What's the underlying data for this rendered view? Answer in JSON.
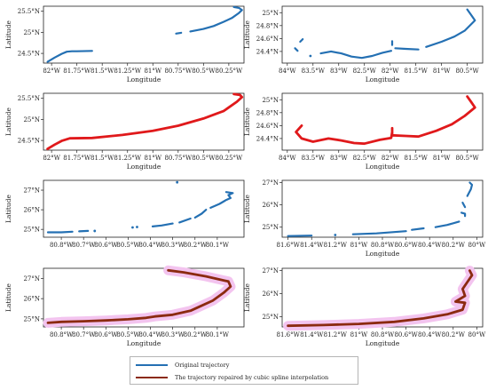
{
  "colors": {
    "original": "#2470b3",
    "repaired_left": "#e0191b",
    "repaired_right": "#8b2a10",
    "band": "#f3c4ef",
    "axis": "#222222"
  },
  "legend": {
    "original": "Original trajectory",
    "repaired": "The trajectory repaired by cubic spline interpolation"
  },
  "chart_data": [
    {
      "id": "p1",
      "type": "line",
      "style": "original",
      "xlabel": "Longitude",
      "ylabel": "Latitude",
      "xlim": [
        -82.08,
        -80.1
      ],
      "ylim": [
        24.27,
        25.62
      ],
      "xticks": [
        -82,
        -81.75,
        -81.5,
        -81.25,
        -81,
        -80.75,
        -80.5,
        -80.25
      ],
      "xticklabels": [
        "82°W",
        "81.75°W",
        "81.5°W",
        "81.25°W",
        "81°W",
        "80.75°W",
        "80.5°W",
        "80.25°W"
      ],
      "yticks": [
        24.5,
        25,
        25.5
      ],
      "yticklabels": [
        "24.5°N",
        "25°N",
        "25.5°N"
      ],
      "series": [
        {
          "segments": [
            [
              [
                -82.04,
                24.3
              ],
              [
                -81.97,
                24.4
              ],
              [
                -81.9,
                24.49
              ],
              [
                -81.85,
                24.54
              ],
              [
                -81.8,
                24.55
              ],
              [
                -81.75,
                24.55
              ],
              [
                -81.6,
                24.56
              ]
            ],
            [
              [
                -80.77,
                24.97
              ],
              [
                -80.72,
                24.99
              ]
            ],
            [
              [
                -80.63,
                25.02
              ],
              [
                -80.5,
                25.08
              ],
              [
                -80.4,
                25.15
              ],
              [
                -80.3,
                25.25
              ],
              [
                -80.22,
                25.34
              ],
              [
                -80.15,
                25.46
              ],
              [
                -80.12,
                25.53
              ],
              [
                -80.15,
                25.58
              ],
              [
                -80.2,
                25.6
              ]
            ]
          ]
        }
      ]
    },
    {
      "id": "p2",
      "type": "line",
      "style": "original",
      "xlabel": "Longitude",
      "ylabel": "Latitude",
      "xlim": [
        -84.1,
        -80.2
      ],
      "ylim": [
        24.22,
        25.1
      ],
      "xticks": [
        -84,
        -83.5,
        -83,
        -82.5,
        -82,
        -81.5,
        -81,
        -80.5
      ],
      "xticklabels": [
        "84°W",
        "83.5°W",
        "83°W",
        "82.5°W",
        "82°W",
        "81.5°W",
        "81°W",
        "80.5°W"
      ],
      "yticks": [
        24.4,
        24.6,
        24.8,
        25.0
      ],
      "yticklabels": [
        "24.4°N",
        "24.6°N",
        "24.8°N",
        "25°N"
      ],
      "series": [
        {
          "segments": [
            [
              [
                -83.85,
                24.45
              ],
              [
                -83.8,
                24.41
              ]
            ],
            [
              [
                -83.75,
                24.55
              ],
              [
                -83.7,
                24.59
              ]
            ],
            [
              [
                -83.55,
                24.33
              ]
            ],
            [
              [
                -83.35,
                24.37
              ],
              [
                -83.15,
                24.4
              ],
              [
                -82.95,
                24.37
              ],
              [
                -82.75,
                24.32
              ],
              [
                -82.55,
                24.3
              ],
              [
                -82.35,
                24.33
              ],
              [
                -82.15,
                24.38
              ],
              [
                -81.98,
                24.41
              ]
            ],
            [
              [
                -81.96,
                24.5
              ],
              [
                -81.96,
                24.56
              ]
            ],
            [
              [
                -81.9,
                24.45
              ],
              [
                -81.7,
                24.44
              ],
              [
                -81.45,
                24.43
              ]
            ],
            [
              [
                -81.3,
                24.47
              ],
              [
                -81.0,
                24.55
              ],
              [
                -80.75,
                24.63
              ],
              [
                -80.55,
                24.72
              ],
              [
                -80.35,
                24.88
              ],
              [
                -80.42,
                24.96
              ],
              [
                -80.5,
                25.05
              ]
            ]
          ]
        }
      ]
    },
    {
      "id": "p3",
      "type": "line",
      "style": "repaired_left",
      "xlabel": "Longitude",
      "ylabel": "Latitude",
      "xlim": [
        -82.08,
        -80.1
      ],
      "ylim": [
        24.27,
        25.62
      ],
      "xticks": [
        -82,
        -81.75,
        -81.5,
        -81.25,
        -81,
        -80.75,
        -80.5,
        -80.25
      ],
      "xticklabels": [
        "82°W",
        "81.75°W",
        "81.5°W",
        "81.25°W",
        "81°W",
        "80.75°W",
        "80.5°W",
        "80.25°W"
      ],
      "yticks": [
        24.5,
        25,
        25.5
      ],
      "yticklabels": [
        "24.5°N",
        "25°N",
        "25.5°N"
      ],
      "series": [
        {
          "segments": [
            [
              [
                -82.04,
                24.3
              ],
              [
                -81.97,
                24.4
              ],
              [
                -81.9,
                24.49
              ],
              [
                -81.82,
                24.55
              ],
              [
                -81.6,
                24.56
              ],
              [
                -81.3,
                24.63
              ],
              [
                -81.0,
                24.73
              ],
              [
                -80.75,
                24.85
              ],
              [
                -80.5,
                25.02
              ],
              [
                -80.3,
                25.2
              ],
              [
                -80.17,
                25.42
              ],
              [
                -80.12,
                25.53
              ],
              [
                -80.14,
                25.58
              ],
              [
                -80.2,
                25.6
              ]
            ]
          ]
        }
      ]
    },
    {
      "id": "p4",
      "type": "line",
      "style": "repaired_left",
      "xlabel": "Longitude",
      "ylabel": "Latitude",
      "xlim": [
        -84.1,
        -80.2
      ],
      "ylim": [
        24.22,
        25.1
      ],
      "xticks": [
        -84,
        -83.5,
        -83,
        -82.5,
        -82,
        -81.5,
        -81,
        -80.5
      ],
      "xticklabels": [
        "84°W",
        "83.5°W",
        "83°W",
        "82.5°W",
        "82°W",
        "81.5°W",
        "81°W",
        "80.5°W"
      ],
      "yticks": [
        24.4,
        24.6,
        24.8,
        25.0
      ],
      "yticklabels": [
        "24.4°N",
        "24.6°N",
        "24.8°N",
        "25°N"
      ],
      "series": [
        {
          "segments": [
            [
              [
                -83.72,
                24.6
              ],
              [
                -83.83,
                24.5
              ],
              [
                -83.72,
                24.4
              ],
              [
                -83.5,
                24.35
              ],
              [
                -83.2,
                24.4
              ],
              [
                -82.95,
                24.37
              ],
              [
                -82.7,
                24.33
              ],
              [
                -82.5,
                24.32
              ],
              [
                -82.2,
                24.38
              ],
              [
                -81.98,
                24.41
              ],
              [
                -81.96,
                24.5
              ],
              [
                -81.96,
                24.56
              ],
              [
                -81.96,
                24.45
              ],
              [
                -81.7,
                24.44
              ],
              [
                -81.45,
                24.43
              ],
              [
                -81.1,
                24.52
              ],
              [
                -80.8,
                24.62
              ],
              [
                -80.55,
                24.75
              ],
              [
                -80.35,
                24.88
              ],
              [
                -80.42,
                24.96
              ],
              [
                -80.5,
                25.05
              ]
            ]
          ]
        }
      ]
    },
    {
      "id": "p5",
      "type": "line",
      "style": "original",
      "xlabel": "",
      "ylabel": "Latitude",
      "xlim": [
        -80.88,
        -79.98
      ],
      "ylim": [
        24.6,
        27.5
      ],
      "xticks": [
        -80.8,
        -80.7,
        -80.6,
        -80.5,
        -80.4,
        -80.3,
        -80.2,
        -80.1
      ],
      "xticklabels": [
        "80.8°W",
        "80.7°W",
        "80.6°W",
        "80.5°W",
        "80.4°W",
        "80.3°W",
        "80.2°W",
        "80.1°W"
      ],
      "yticks": [
        25,
        26,
        27
      ],
      "yticklabels": [
        "25°N",
        "26°N",
        "27°N"
      ],
      "series": [
        {
          "segments": [
            [
              [
                -80.86,
                24.85
              ],
              [
                -80.8,
                24.85
              ],
              [
                -80.75,
                24.88
              ]
            ],
            [
              [
                -80.72,
                24.9
              ],
              [
                -80.68,
                24.92
              ]
            ],
            [
              [
                -80.65,
                24.92
              ]
            ],
            [
              [
                -80.48,
                25.1
              ]
            ],
            [
              [
                -80.46,
                25.12
              ]
            ],
            [
              [
                -80.39,
                25.15
              ],
              [
                -80.35,
                25.2
              ],
              [
                -80.3,
                25.3
              ]
            ],
            [
              [
                -80.28,
                27.4
              ]
            ],
            [
              [
                -80.27,
                25.35
              ],
              [
                -80.22,
                25.55
              ]
            ],
            [
              [
                -80.2,
                25.6
              ],
              [
                -80.17,
                25.8
              ],
              [
                -80.15,
                26.0
              ]
            ],
            [
              [
                -80.13,
                26.1
              ],
              [
                -80.09,
                26.3
              ],
              [
                -80.06,
                26.5
              ],
              [
                -80.04,
                26.6
              ],
              [
                -80.05,
                26.75
              ],
              [
                -80.03,
                26.85
              ],
              [
                -80.06,
                26.9
              ]
            ]
          ]
        }
      ]
    },
    {
      "id": "p6",
      "type": "line",
      "style": "original",
      "xlabel": "Longitude",
      "ylabel": "Latitude",
      "xlim": [
        -81.65,
        -79.95
      ],
      "ylim": [
        24.55,
        27.1
      ],
      "xticks": [
        -81.6,
        -81.4,
        -81.2,
        -81.0,
        -80.8,
        -80.6,
        -80.4,
        -80.2,
        -80.0
      ],
      "xticklabels": [
        "81.6°W",
        "81.4°W",
        "81.2°W",
        "81°W",
        "80.8°W",
        "80.6°W",
        "80.4°W",
        "80.2°W",
        "80°W"
      ],
      "yticks": [
        25,
        26,
        27
      ],
      "yticklabels": [
        "25°N",
        "26°N",
        "27°N"
      ],
      "series": [
        {
          "segments": [
            [
              [
                -81.6,
                24.6
              ],
              [
                -81.4,
                24.62
              ]
            ],
            [
              [
                -81.2,
                24.65
              ]
            ],
            [
              [
                -81.05,
                24.68
              ],
              [
                -80.85,
                24.72
              ],
              [
                -80.7,
                24.78
              ],
              [
                -80.6,
                24.82
              ]
            ],
            [
              [
                -80.55,
                24.88
              ],
              [
                -80.45,
                24.95
              ]
            ],
            [
              [
                -80.35,
                25.0
              ],
              [
                -80.25,
                25.1
              ],
              [
                -80.15,
                25.25
              ]
            ],
            [
              [
                -80.1,
                25.5
              ],
              [
                -80.1,
                25.6
              ],
              [
                -80.13,
                25.65
              ]
            ],
            [
              [
                -80.1,
                25.9
              ],
              [
                -80.12,
                26.1
              ]
            ],
            [
              [
                -80.08,
                26.4
              ],
              [
                -80.05,
                26.7
              ],
              [
                -80.04,
                26.9
              ],
              [
                -80.06,
                27.0
              ]
            ]
          ]
        }
      ]
    },
    {
      "id": "p7",
      "type": "area",
      "style": "repaired_right",
      "xlabel": "Longitude",
      "ylabel": "Latitude",
      "xlim": [
        -80.88,
        -79.98
      ],
      "ylim": [
        24.6,
        27.5
      ],
      "xticks": [
        -80.8,
        -80.7,
        -80.6,
        -80.5,
        -80.4,
        -80.3,
        -80.2,
        -80.1
      ],
      "xticklabels": [
        "80.8°W",
        "80.7°W",
        "80.6°W",
        "80.5°W",
        "80.4°W",
        "80.3°W",
        "80.2°W",
        "80.1°W"
      ],
      "yticks": [
        25,
        26,
        27
      ],
      "yticklabels": [
        "25°N",
        "26°N",
        "27°N"
      ],
      "series": [
        {
          "segments": [
            [
              [
                -80.86,
                24.8
              ],
              [
                -80.8,
                24.85
              ],
              [
                -80.7,
                24.88
              ],
              [
                -80.6,
                24.92
              ],
              [
                -80.5,
                24.98
              ],
              [
                -80.42,
                25.05
              ],
              [
                -80.38,
                25.12
              ],
              [
                -80.3,
                25.2
              ],
              [
                -80.22,
                25.4
              ],
              [
                -80.18,
                25.6
              ],
              [
                -80.12,
                25.9
              ],
              [
                -80.07,
                26.3
              ],
              [
                -80.04,
                26.6
              ],
              [
                -80.05,
                26.85
              ],
              [
                -80.15,
                27.1
              ],
              [
                -80.25,
                27.3
              ],
              [
                -80.32,
                27.4
              ]
            ]
          ]
        }
      ]
    },
    {
      "id": "p8",
      "type": "area",
      "style": "repaired_right",
      "xlabel": "Longitude",
      "ylabel": "Latitude",
      "xlim": [
        -81.65,
        -79.95
      ],
      "ylim": [
        24.55,
        27.1
      ],
      "xticks": [
        -81.6,
        -81.4,
        -81.2,
        -81.0,
        -80.8,
        -80.6,
        -80.4,
        -80.2,
        -80.0
      ],
      "xticklabels": [
        "81.6°W",
        "81.4°W",
        "81.2°W",
        "81°W",
        "80.8°W",
        "80.6°W",
        "80.4°W",
        "80.2°W",
        "80°W"
      ],
      "yticks": [
        25,
        26,
        27
      ],
      "yticklabels": [
        "25°N",
        "26°N",
        "27°N"
      ],
      "series": [
        {
          "segments": [
            [
              [
                -81.6,
                24.6
              ],
              [
                -81.3,
                24.63
              ],
              [
                -81.0,
                24.68
              ],
              [
                -80.7,
                24.77
              ],
              [
                -80.45,
                24.92
              ],
              [
                -80.25,
                25.1
              ],
              [
                -80.12,
                25.3
              ],
              [
                -80.1,
                25.6
              ],
              [
                -80.18,
                25.65
              ],
              [
                -80.1,
                25.9
              ],
              [
                -80.12,
                26.2
              ],
              [
                -80.08,
                26.5
              ],
              [
                -80.04,
                26.8
              ],
              [
                -80.06,
                27.0
              ]
            ]
          ]
        }
      ]
    }
  ]
}
